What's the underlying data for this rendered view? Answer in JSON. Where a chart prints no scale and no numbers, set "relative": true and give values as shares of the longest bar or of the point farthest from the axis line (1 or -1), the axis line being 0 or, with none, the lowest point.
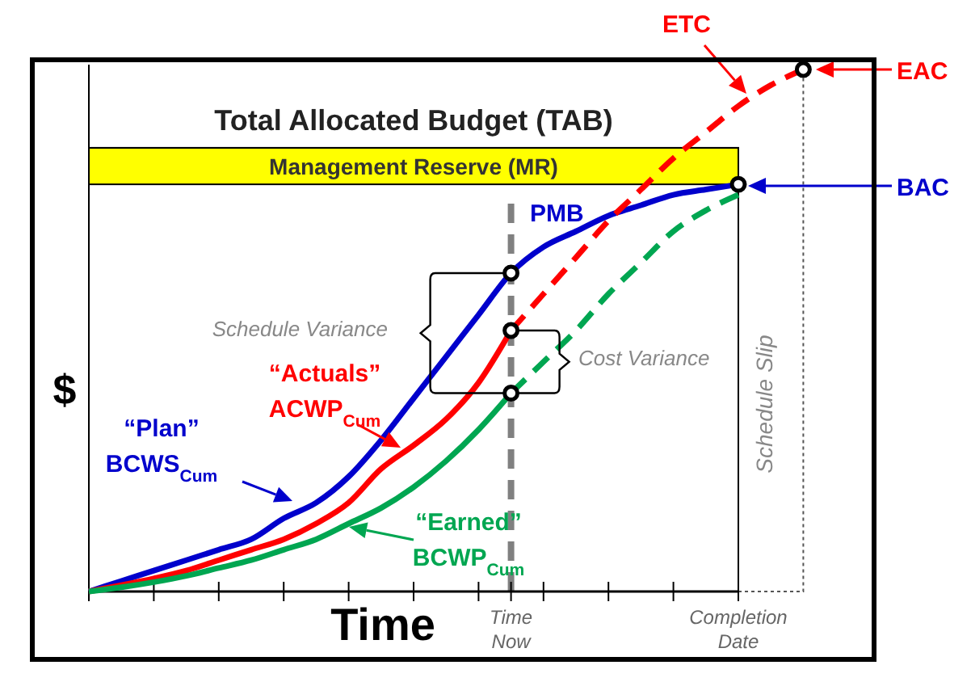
{
  "chart_data": {
    "type": "line",
    "relative": true,
    "xlabel": "Time",
    "ylabel": "$",
    "categories": [
      null,
      null,
      null,
      null,
      null,
      null,
      null,
      null,
      null,
      null,
      null,
      null,
      null,
      "Time Now",
      null,
      null,
      null,
      null,
      null,
      null,
      "Completion Date",
      null,
      null
    ],
    "series": [
      {
        "color": "#0000cc",
        "line_style": "solid",
        "values": [
          0,
          0.02,
          0.04,
          0.06,
          0.08,
          0.1,
          0.14,
          0.17,
          0.22,
          0.29,
          0.37,
          0.45,
          0.53,
          0.61,
          0.66,
          0.69,
          0.72,
          0.74,
          0.76,
          0.77,
          0.78,
          null,
          null
        ]
      },
      {
        "color": "#ff0000",
        "line_style": "solid",
        "values": [
          0,
          0.012,
          0.025,
          0.04,
          0.06,
          0.08,
          0.1,
          0.13,
          0.17,
          0.235,
          0.28,
          0.33,
          0.4,
          0.5,
          null,
          null,
          null,
          null,
          null,
          null,
          null,
          null,
          null
        ]
      },
      {
        "color": "#ff0000",
        "line_style": "dashed",
        "values": [
          null,
          null,
          null,
          null,
          null,
          null,
          null,
          null,
          null,
          null,
          null,
          null,
          null,
          0.5,
          0.57,
          0.64,
          0.71,
          0.77,
          0.83,
          0.88,
          0.93,
          0.97,
          1
        ]
      },
      {
        "color": "#00a651",
        "line_style": "solid",
        "values": [
          0,
          0.008,
          0.018,
          0.03,
          0.045,
          0.06,
          0.08,
          0.1,
          0.13,
          0.16,
          0.2,
          0.25,
          0.31,
          0.38,
          null,
          null,
          null,
          null,
          null,
          null,
          null,
          null,
          null
        ]
      },
      {
        "color": "#00a651",
        "line_style": "dashed",
        "values": [
          null,
          null,
          null,
          null,
          null,
          null,
          null,
          null,
          null,
          null,
          null,
          null,
          null,
          0.38,
          0.44,
          0.5,
          0.57,
          0.63,
          0.69,
          0.73,
          0.76,
          null,
          null
        ]
      },
      {
        "type": "scatter",
        "marker": "circle",
        "color": "#000000",
        "values": [
          null,
          null,
          null,
          null,
          null,
          null,
          null,
          null,
          null,
          null,
          null,
          null,
          null,
          0.61,
          null,
          null,
          null,
          null,
          null,
          null,
          0.78,
          null,
          null
        ]
      },
      {
        "type": "scatter",
        "marker": "circle",
        "color": "#000000",
        "values": [
          null,
          null,
          null,
          null,
          null,
          null,
          null,
          null,
          null,
          null,
          null,
          null,
          null,
          0.5,
          null,
          null,
          null,
          null,
          null,
          null,
          null,
          null,
          1
        ]
      },
      {
        "type": "scatter",
        "marker": "circle",
        "color": "#000000",
        "values": [
          null,
          null,
          null,
          null,
          null,
          null,
          null,
          null,
          null,
          null,
          null,
          null,
          null,
          0.38,
          null,
          null,
          null,
          null,
          null,
          null,
          null,
          null,
          null
        ]
      }
    ],
    "bands": [
      {
        "axis": "y",
        "from": 0.78,
        "to": 0.85,
        "label": "Management Reserve (MR)",
        "color": "#ffff00"
      }
    ],
    "ref_lines": [
      {
        "axis": "y",
        "value": 0.85,
        "label": "Total Allocated Budget (TAB)",
        "color": "#000000",
        "line_style": "solid"
      },
      {
        "axis": "x",
        "value": "Time Now",
        "color": "#808080",
        "line_style": "dashed"
      },
      {
        "axis": "x",
        "value": "Completion Date",
        "color": "#000000",
        "line_style": "solid"
      }
    ],
    "annotations": [
      "ETC",
      "EAC",
      "BAC",
      "PMB",
      "“Plan”\nBCWS$_{Cum}$",
      "“Actuals”\nACWP$_{Cum}$",
      "“Earned”\nBCWP$_{Cum}$",
      "Schedule Variance",
      "Cost Variance",
      "Schedule Slip"
    ]
  }
}
